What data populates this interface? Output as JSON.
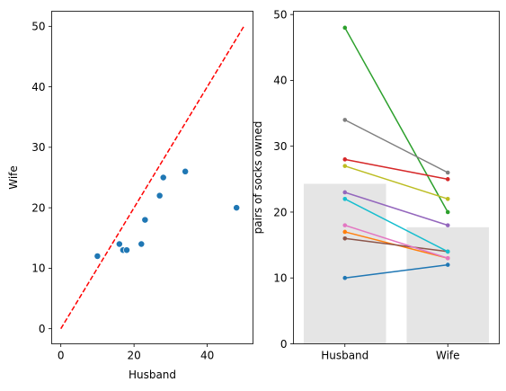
{
  "chart_data": [
    {
      "type": "scatter",
      "xlabel": "Husband",
      "ylabel": "Wife",
      "xlim": [
        -2.5,
        52.5
      ],
      "ylim": [
        -2.5,
        52.5
      ],
      "xticks": [
        "0",
        "20",
        "40"
      ],
      "yticks": [
        "0",
        "10",
        "20",
        "30",
        "40",
        "50"
      ],
      "point_color": "#1f77b4",
      "points": [
        {
          "x": 10,
          "y": 12
        },
        {
          "x": 16,
          "y": 14
        },
        {
          "x": 17,
          "y": 13
        },
        {
          "x": 18,
          "y": 13
        },
        {
          "x": 22,
          "y": 14
        },
        {
          "x": 23,
          "y": 18
        },
        {
          "x": 27,
          "y": 22
        },
        {
          "x": 28,
          "y": 25
        },
        {
          "x": 34,
          "y": 26
        },
        {
          "x": 48,
          "y": 20
        }
      ],
      "reference_line": {
        "from": [
          0,
          0
        ],
        "to": [
          50,
          50
        ],
        "color": "#ff0000",
        "style": "dashed"
      },
      "grid": false
    },
    {
      "type": "bar",
      "categories": [
        "Husband",
        "Wife"
      ],
      "values": [
        24.3,
        17.7
      ],
      "bar_color": "#e5e5e5",
      "ylabel": "pairs of socks owned",
      "ylim": [
        0,
        50.5
      ],
      "yticks": [
        "0",
        "10",
        "20",
        "30",
        "40",
        "50"
      ],
      "grid": false,
      "paired_lines": [
        {
          "values": [
            10,
            12
          ],
          "color": "#1f77b4"
        },
        {
          "values": [
            17,
            13
          ],
          "color": "#ff7f0e"
        },
        {
          "values": [
            48,
            20
          ],
          "color": "#2ca02c"
        },
        {
          "values": [
            28,
            25
          ],
          "color": "#d62728"
        },
        {
          "values": [
            23,
            18
          ],
          "color": "#9467bd"
        },
        {
          "values": [
            16,
            14
          ],
          "color": "#8c564b"
        },
        {
          "values": [
            18,
            13
          ],
          "color": "#e377c2"
        },
        {
          "values": [
            34,
            26
          ],
          "color": "#7f7f7f"
        },
        {
          "values": [
            27,
            22
          ],
          "color": "#bcbd22"
        },
        {
          "values": [
            22,
            14
          ],
          "color": "#17becf"
        }
      ]
    }
  ]
}
